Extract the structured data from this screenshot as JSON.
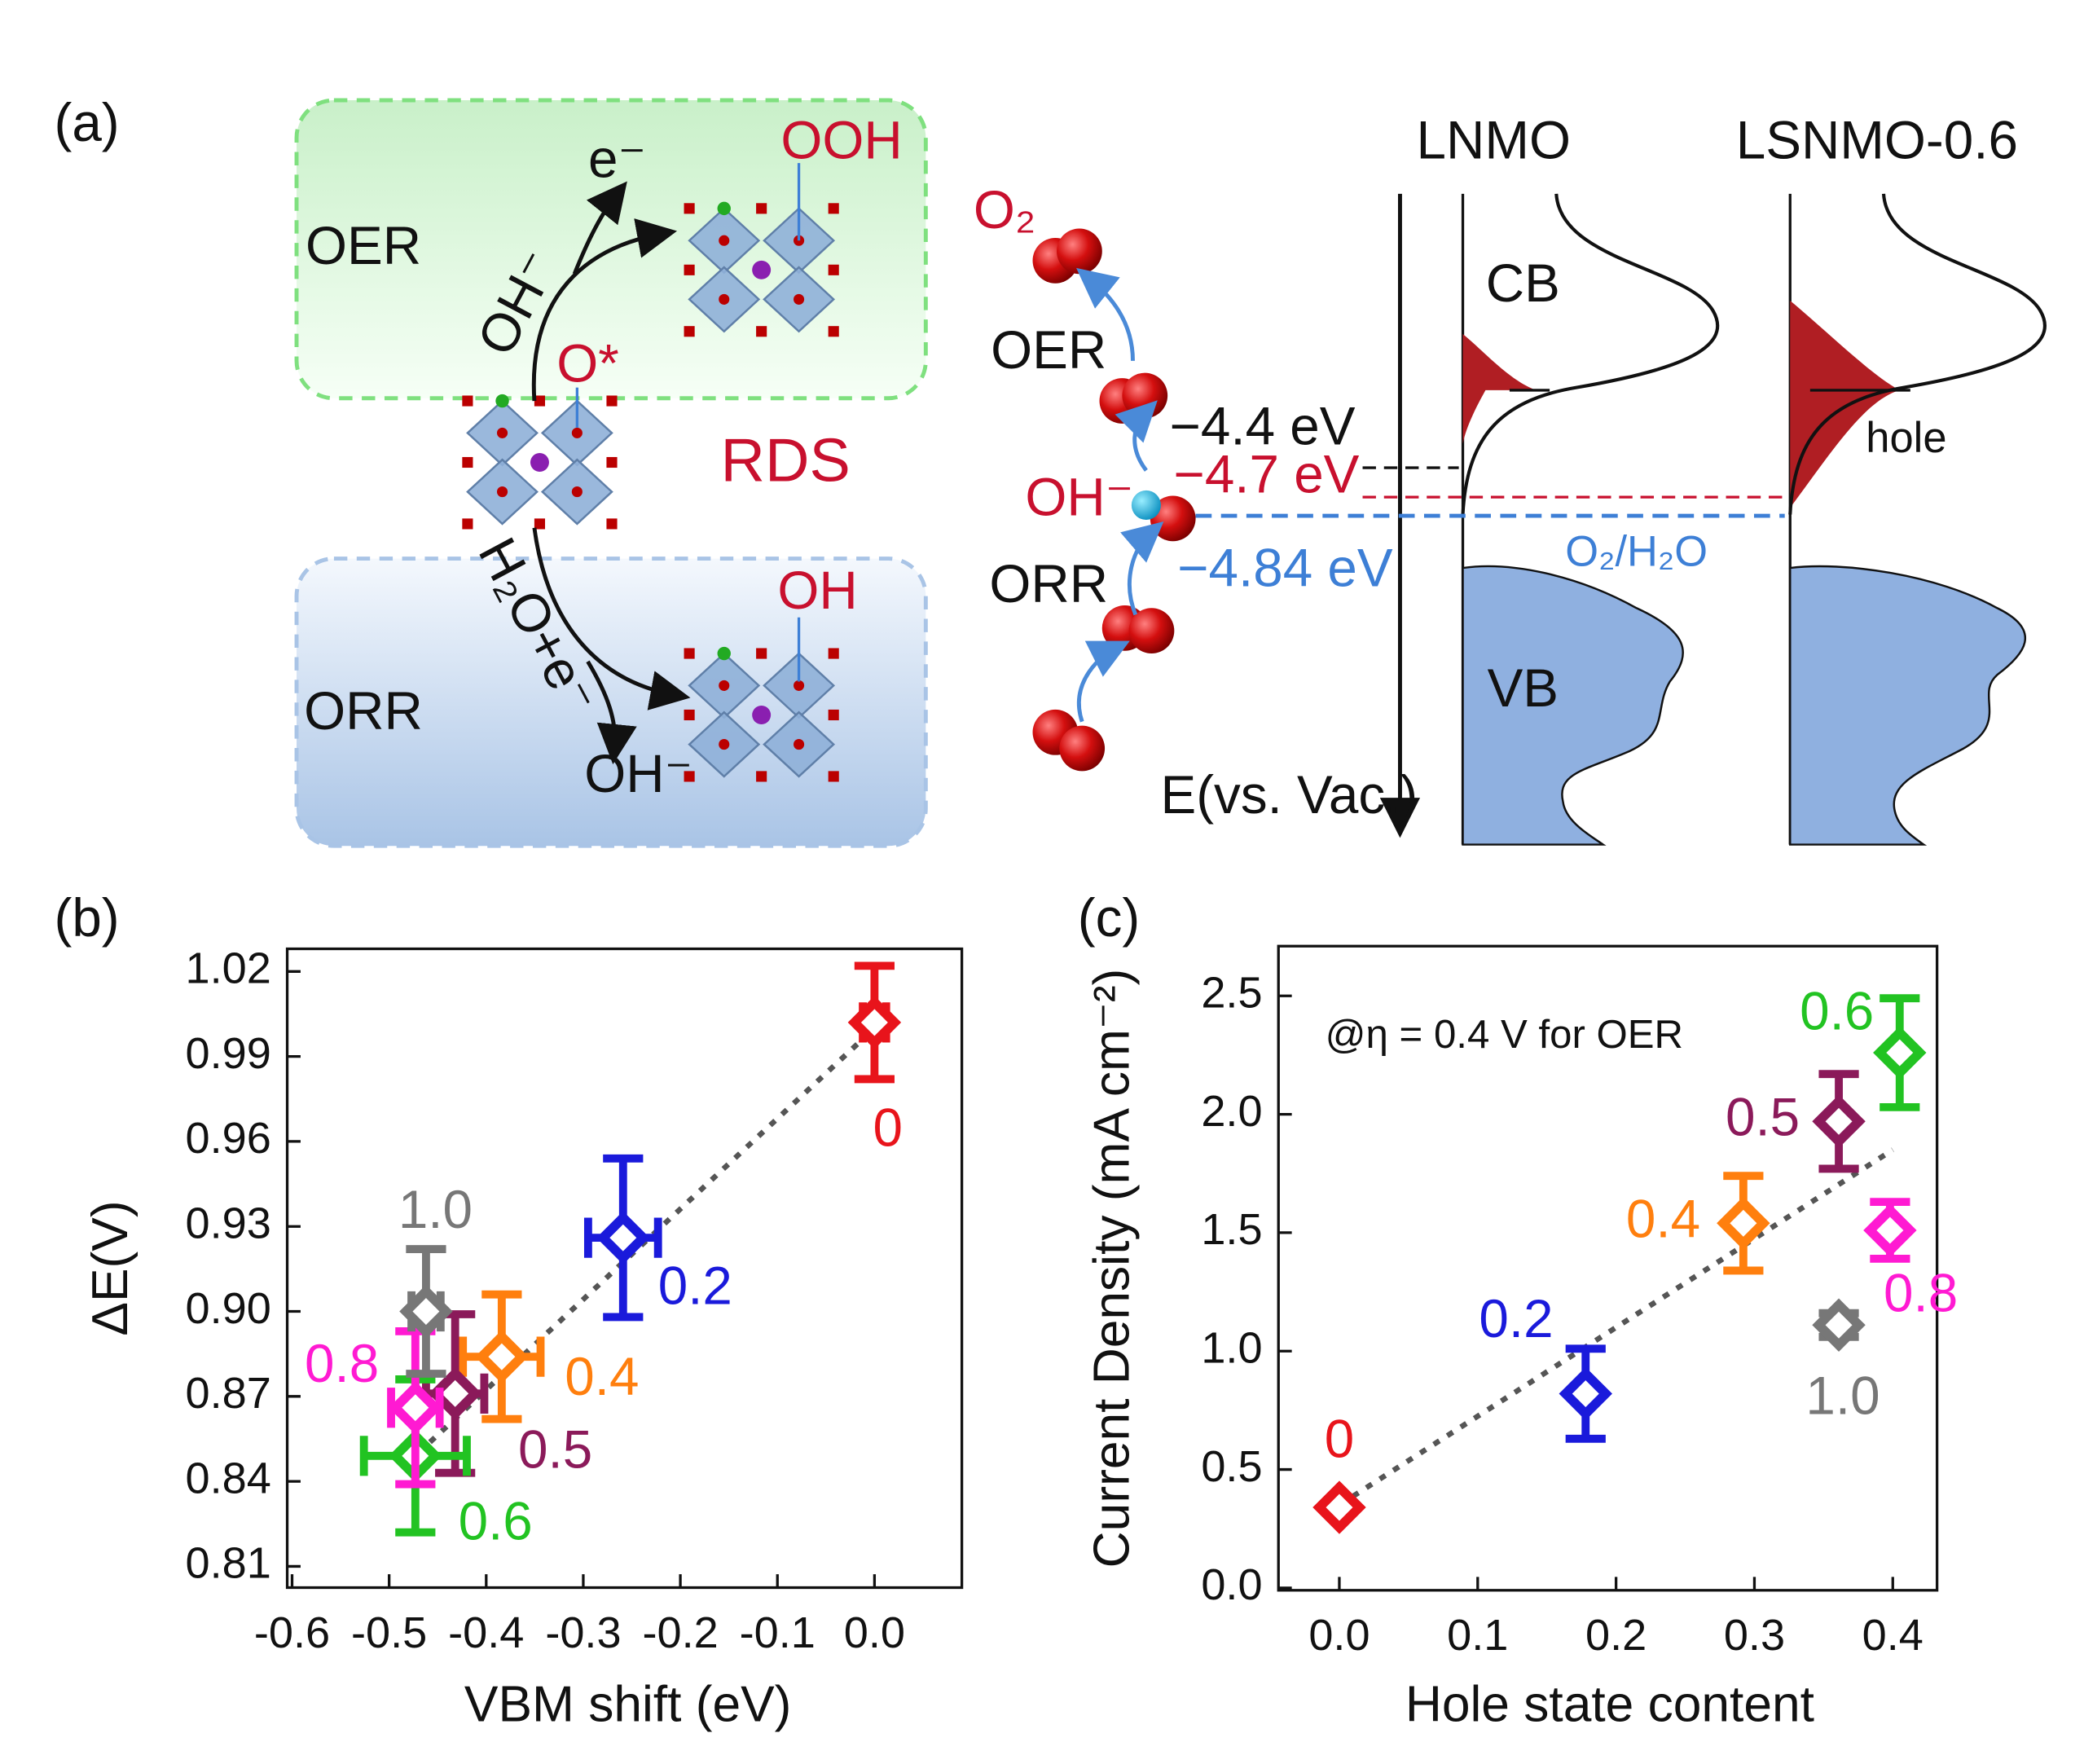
{
  "panels": {
    "a": "(a)",
    "b": "(b)",
    "c": "(c)"
  },
  "diagram": {
    "oer_box": "OER",
    "orr_box": "ORR",
    "electron": "e⁻",
    "ooh": "OOH",
    "oh_minus_oer": "OH⁻",
    "o_star": "O*",
    "rds": "RDS",
    "h2o_e": "H₂O+e⁻",
    "oh": "OH",
    "oh_minus_orr": "OH⁻",
    "o2": "O₂",
    "oer_mid": "OER",
    "oh_minus_mid": "OH⁻",
    "orr_mid": "ORR",
    "e44": "−4.4 eV",
    "e47": "−4.7 eV",
    "e484": "−4.84 eV",
    "lnmo": "LNMO",
    "lsnmo": "LSNMO-0.6",
    "cb": "CB",
    "vb": "VB",
    "hole": "hole",
    "o2h2o": "O₂/H₂O",
    "energy_axis": "E(vs. Vac.)"
  },
  "chart_data": [
    {
      "type": "scatter",
      "xlabel": "VBM shift (eV)",
      "ylabel": "ΔE(V)",
      "xlim": [
        -0.605,
        0.09
      ],
      "ylim": [
        0.8025,
        1.028
      ],
      "xticks": [
        -0.6,
        -0.5,
        -0.4,
        -0.3,
        -0.2,
        -0.1,
        {
          "value": 0,
          "label": "0.0"
        }
      ],
      "yticks": [
        0.81,
        0.84,
        0.87,
        {
          "value": 0.9,
          "label": "0.90"
        },
        0.93,
        0.96,
        0.99,
        1.02
      ],
      "series": [
        {
          "name": "0",
          "color": "#e8141b",
          "x": [
            0.0
          ],
          "values": [
            1.002
          ],
          "xerr": [
            0.012
          ],
          "yerr": [
            0.02
          ]
        },
        {
          "name": "0.2",
          "color": "#1a1adb",
          "x": [
            -0.259
          ],
          "values": [
            0.926
          ],
          "xerr": [
            0.036
          ],
          "yerr": [
            0.028
          ]
        },
        {
          "name": "0.4",
          "color": "#ff7f0e",
          "x": [
            -0.384
          ],
          "values": [
            0.884
          ],
          "xerr": [
            0.04
          ],
          "yerr": [
            0.022
          ]
        },
        {
          "name": "0.5",
          "color": "#8b1a5a",
          "x": [
            -0.432
          ],
          "values": [
            0.871
          ],
          "xerr": [
            0.03
          ],
          "yerr": [
            0.028
          ]
        },
        {
          "name": "0.6",
          "color": "#22c322",
          "x": [
            -0.473
          ],
          "values": [
            0.849
          ],
          "xerr": [
            0.053
          ],
          "yerr": [
            0.027
          ]
        },
        {
          "name": "0.8",
          "color": "#ff1ad2",
          "x": [
            -0.473
          ],
          "values": [
            0.866
          ],
          "xerr": [
            0.025
          ],
          "yerr": [
            0.027
          ]
        },
        {
          "name": "1.0",
          "color": "#777777",
          "x": [
            -0.462
          ],
          "values": [
            0.9
          ],
          "xerr": [
            0.015
          ],
          "yerr": [
            0.022
          ]
        }
      ],
      "fit": {
        "x": [
          -0.47,
          0.0
        ],
        "values": [
          0.85,
          1.0
        ]
      }
    },
    {
      "type": "scatter",
      "xlabel": "Hole state content",
      "ylabel": "Current Density (mA cm⁻²)",
      "annotation": "@η = 0.4 V for OER",
      "xlim": [
        -0.044,
        0.432
      ],
      "ylim": [
        -0.01,
        2.71
      ],
      "xticks": [
        {
          "value": 0,
          "label": "0.0"
        },
        0.1,
        0.2,
        0.3,
        0.4
      ],
      "yticks": [
        {
          "value": 0,
          "label": "0.0"
        },
        0.5,
        {
          "value": 1,
          "label": "1.0"
        },
        1.5,
        {
          "value": 2,
          "label": "2.0"
        },
        2.5
      ],
      "series": [
        {
          "name": "0",
          "color": "#e8141b",
          "x": [
            0.0
          ],
          "values": [
            0.34
          ]
        },
        {
          "name": "0.2",
          "color": "#1a1adb",
          "x": [
            0.178
          ],
          "values": [
            0.82
          ],
          "yerr": [
            0.19
          ]
        },
        {
          "name": "0.4",
          "color": "#ff7f0e",
          "x": [
            0.292
          ],
          "values": [
            1.54
          ],
          "yerr": [
            0.2
          ]
        },
        {
          "name": "0.5",
          "color": "#8b1a5a",
          "x": [
            0.361
          ],
          "values": [
            1.97
          ],
          "yerr": [
            0.2
          ]
        },
        {
          "name": "0.6",
          "color": "#22c322",
          "x": [
            0.405
          ],
          "values": [
            2.26
          ],
          "yerr": [
            0.23
          ]
        },
        {
          "name": "0.8",
          "color": "#ff1ad2",
          "x": [
            0.398
          ],
          "values": [
            1.51
          ],
          "yerr": [
            0.12
          ]
        },
        {
          "name": "1.0",
          "color": "#777777",
          "x": [
            0.361
          ],
          "values": [
            1.11
          ],
          "yerr": [
            0.05
          ]
        }
      ],
      "fit": {
        "x": [
          0.0,
          0.4
        ],
        "values": [
          0.35,
          1.85
        ]
      }
    }
  ]
}
